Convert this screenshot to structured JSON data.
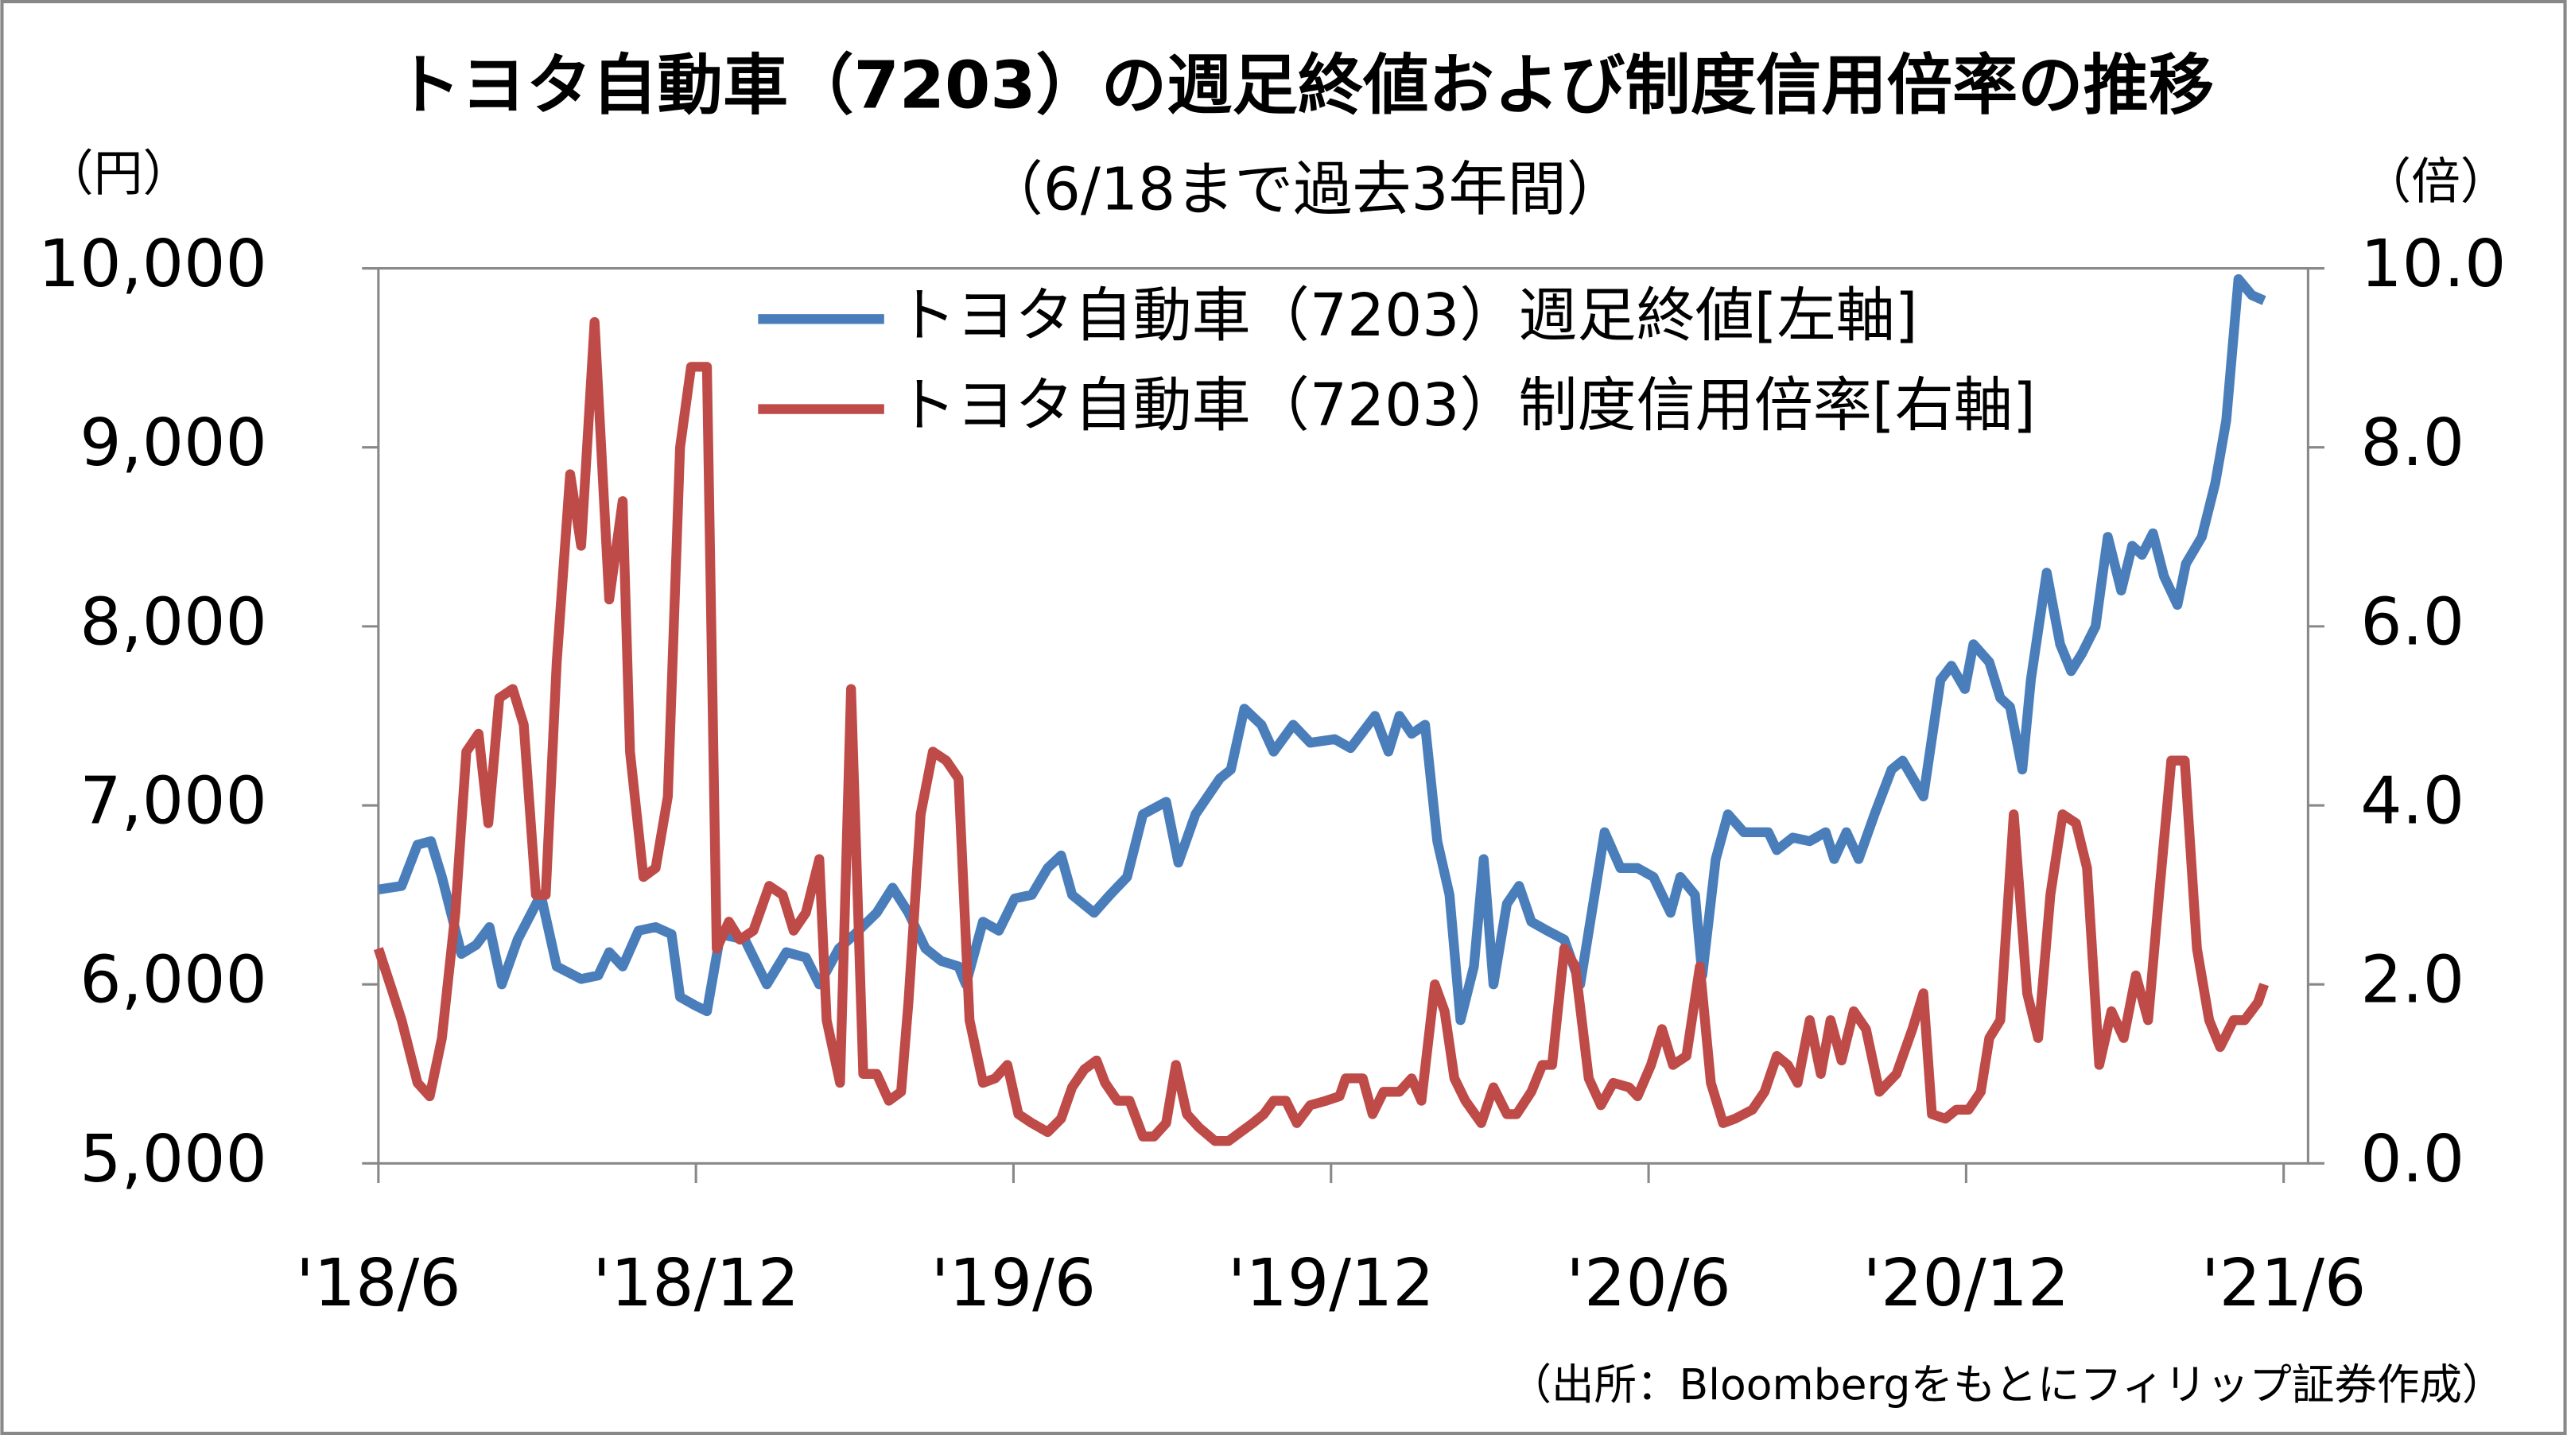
{
  "chart_data": {
    "type": "line",
    "title": "トヨタ自動車（7203）の週足終値および制度信用倍率の推移",
    "subtitle": "（6/18まで過去3年間）",
    "y_label": "（円）",
    "y2_label": "（倍）",
    "source": "（出所：Bloombergをもとにフィリップ証券作成）",
    "legend": "top",
    "xlim": [
      0,
      158
    ],
    "xticks": [
      {
        "value": 0,
        "label": "'18/6"
      },
      {
        "value": 26,
        "label": "'18/12"
      },
      {
        "value": 52,
        "label": "'19/6"
      },
      {
        "value": 78,
        "label": "'19/12"
      },
      {
        "value": 104,
        "label": "'20/6"
      },
      {
        "value": 130,
        "label": "'20/12"
      },
      {
        "value": 156,
        "label": "'21/6"
      }
    ],
    "ylim": [
      5000,
      10000
    ],
    "yticks": [
      {
        "value": 5000,
        "label": "5,000"
      },
      {
        "value": 6000,
        "label": "6,000"
      },
      {
        "value": 7000,
        "label": "7,000"
      },
      {
        "value": 8000,
        "label": "8,000"
      },
      {
        "value": 9000,
        "label": "9,000"
      },
      {
        "value": 10000,
        "label": "10,000"
      }
    ],
    "y2lim": [
      0,
      10
    ],
    "y2ticks": [
      {
        "value": 0,
        "label": "0.0"
      },
      {
        "value": 2,
        "label": "2.0"
      },
      {
        "value": 4,
        "label": "4.0"
      },
      {
        "value": 6,
        "label": "6.0"
      },
      {
        "value": 8,
        "label": "8.0"
      },
      {
        "value": 10,
        "label": "10.0"
      }
    ],
    "series": [
      {
        "name": "トヨタ自動車（7203）週足終値[左軸]",
        "color": "#4a7ebb",
        "x": [
          0,
          1.9,
          3.2,
          4.3,
          5.2,
          6.8,
          8.0,
          9.1,
          10.1,
          11.4,
          13.3,
          14.6,
          16.6,
          18.0,
          18.9,
          20.0,
          21.3,
          22.7,
          24.0,
          24.7,
          26.0,
          26.9,
          28.0,
          30.0,
          31.8,
          33.4,
          35.0,
          36.1,
          37.7,
          39.0,
          40.8,
          42.1,
          43.4,
          44.8,
          46.1,
          47.5,
          48.1,
          49.5,
          50.8,
          52.1,
          53.5,
          54.8,
          55.9,
          56.8,
          58.6,
          59.9,
          61.3,
          62.6,
          64.5,
          65.5,
          66.9,
          68.9,
          69.8,
          70.9,
          72.3,
          73.3,
          74.9,
          76.3,
          78.3,
          79.6,
          81.6,
          82.7,
          83.6,
          84.6,
          85.7,
          86.7,
          87.7,
          88.6,
          89.7,
          90.5,
          91.3,
          92.4,
          93.4,
          94.4,
          95.7,
          97.1,
          98.4,
          99.7,
          100.4,
          101.7,
          103.1,
          104.4,
          105.8,
          106.6,
          107.8,
          108.4,
          109.5,
          110.5,
          111.8,
          113.8,
          114.5,
          115.8,
          117.2,
          118.5,
          119.2,
          120.2,
          121.2,
          122.5,
          123.9,
          124.8,
          126.5,
          127.9,
          128.8,
          129.9,
          130.6,
          131.9,
          132.8,
          133.6,
          134.6,
          135.3,
          136.6,
          137.7,
          138.6,
          139.5,
          140.6,
          141.6,
          142.7,
          143.6,
          144.4,
          145.3,
          146.2,
          147.3,
          148.0,
          149.3,
          150.4,
          151.3,
          152.3,
          153.4,
          154.4
        ],
        "values": [
          6530,
          6550,
          6780,
          6800,
          6600,
          6170,
          6220,
          6320,
          6000,
          6250,
          6500,
          6100,
          6030,
          6050,
          6180,
          6100,
          6300,
          6320,
          6280,
          5930,
          5880,
          5850,
          6280,
          6250,
          6000,
          6180,
          6150,
          6000,
          6200,
          6280,
          6400,
          6540,
          6400,
          6200,
          6130,
          6100,
          6000,
          6350,
          6300,
          6480,
          6500,
          6650,
          6720,
          6500,
          6400,
          6500,
          6600,
          6950,
          7020,
          6680,
          6950,
          7150,
          7200,
          7540,
          7450,
          7300,
          7450,
          7350,
          7370,
          7320,
          7500,
          7300,
          7500,
          7400,
          7450,
          6800,
          6500,
          5800,
          6100,
          6700,
          6000,
          6450,
          6550,
          6350,
          6300,
          6250,
          6000,
          6550,
          6850,
          6650,
          6650,
          6600,
          6400,
          6600,
          6500,
          6050,
          6700,
          6950,
          6850,
          6850,
          6750,
          6820,
          6800,
          6850,
          6700,
          6850,
          6700,
          6950,
          7200,
          7250,
          7050,
          7700,
          7780,
          7650,
          7900,
          7800,
          7600,
          7550,
          7200,
          7700,
          8300,
          7900,
          7750,
          7850,
          8000,
          8500,
          8200,
          8450,
          8400,
          8520,
          8280,
          8120,
          8350,
          8500,
          8800,
          9150,
          9940,
          9850,
          9820
        ]
      },
      {
        "name": "トヨタ自動車（7203）制度信用倍率[右軸]",
        "color": "#be4b48",
        "axis": "y2",
        "x": [
          0,
          1.2,
          1.9,
          3.2,
          4.2,
          5.2,
          6.3,
          7.2,
          8.2,
          9.0,
          9.9,
          11.0,
          11.9,
          12.9,
          13.7,
          14.6,
          15.7,
          16.6,
          17.7,
          18.9,
          20.0,
          20.6,
          21.7,
          22.7,
          23.7,
          24.7,
          25.6,
          26.9,
          27.7,
          28.7,
          29.6,
          30.7,
          32.0,
          33.1,
          34.0,
          35.0,
          36.1,
          36.7,
          37.8,
          38.7,
          39.7,
          40.8,
          41.8,
          42.8,
          43.4,
          44.4,
          45.4,
          46.5,
          47.5,
          48.4,
          49.5,
          50.5,
          51.5,
          52.4,
          53.5,
          54.8,
          55.9,
          56.8,
          57.8,
          58.8,
          59.5,
          60.5,
          61.5,
          62.6,
          63.5,
          64.5,
          65.3,
          66.2,
          67.2,
          68.5,
          69.6,
          70.6,
          71.6,
          72.5,
          73.3,
          74.3,
          75.2,
          76.3,
          77.6,
          78.7,
          79.2,
          80.6,
          81.4,
          82.3,
          83.6,
          84.6,
          85.4,
          86.5,
          87.3,
          88.1,
          89.0,
          90.3,
          91.3,
          92.4,
          93.2,
          94.4,
          95.3,
          96.1,
          97.1,
          98.0,
          99.1,
          100.1,
          101.1,
          102.4,
          103.1,
          104.2,
          105.1,
          106.0,
          107.1,
          108.2,
          109.1,
          110.1,
          111.1,
          112.5,
          113.5,
          114.5,
          115.4,
          116.2,
          117.2,
          118.1,
          118.9,
          119.8,
          120.8,
          121.8,
          122.9,
          124.3,
          125.6,
          126.5,
          127.2,
          128.3,
          129.2,
          130.2,
          131.2,
          131.9,
          132.8,
          133.9,
          135.0,
          135.9,
          136.9,
          137.9,
          139.0,
          139.9,
          140.9,
          141.9,
          142.9,
          143.9,
          144.9,
          145.8,
          146.8,
          147.9,
          148.9,
          149.9,
          150.8,
          151.9,
          152.8,
          153.9,
          154.4
        ],
        "values": [
          2.4,
          1.9,
          1.6,
          0.9,
          0.75,
          1.4,
          2.8,
          4.6,
          4.8,
          3.8,
          5.2,
          5.3,
          4.9,
          3.0,
          3.0,
          5.6,
          7.7,
          6.9,
          9.4,
          6.3,
          7.4,
          4.6,
          3.2,
          3.3,
          4.1,
          8.0,
          8.9,
          8.9,
          2.4,
          2.7,
          2.5,
          2.6,
          3.1,
          3.0,
          2.6,
          2.8,
          3.4,
          1.6,
          0.9,
          5.3,
          1.0,
          1.0,
          0.7,
          0.8,
          1.8,
          3.9,
          4.6,
          4.5,
          4.3,
          1.6,
          0.9,
          0.95,
          1.1,
          0.55,
          0.45,
          0.35,
          0.5,
          0.85,
          1.05,
          1.15,
          0.9,
          0.7,
          0.7,
          0.3,
          0.3,
          0.45,
          1.1,
          0.55,
          0.4,
          0.25,
          0.25,
          0.35,
          0.45,
          0.55,
          0.7,
          0.7,
          0.45,
          0.65,
          0.7,
          0.75,
          0.95,
          0.95,
          0.55,
          0.8,
          0.8,
          0.95,
          0.7,
          2.0,
          1.7,
          0.95,
          0.7,
          0.45,
          0.85,
          0.55,
          0.55,
          0.8,
          1.1,
          1.1,
          2.4,
          2.2,
          0.95,
          0.65,
          0.9,
          0.85,
          0.75,
          1.1,
          1.5,
          1.1,
          1.2,
          2.2,
          0.9,
          0.45,
          0.5,
          0.6,
          0.8,
          1.2,
          1.1,
          0.9,
          1.6,
          1.0,
          1.6,
          1.15,
          1.7,
          1.5,
          0.8,
          1.0,
          1.5,
          1.9,
          0.55,
          0.5,
          0.6,
          0.6,
          0.8,
          1.4,
          1.6,
          3.9,
          1.9,
          1.4,
          3.0,
          3.9,
          3.8,
          3.3,
          1.1,
          1.7,
          1.4,
          2.1,
          1.6,
          3.0,
          4.5,
          4.5,
          2.4,
          1.6,
          1.3,
          1.6,
          1.6,
          1.8,
          2.0
        ]
      }
    ]
  }
}
